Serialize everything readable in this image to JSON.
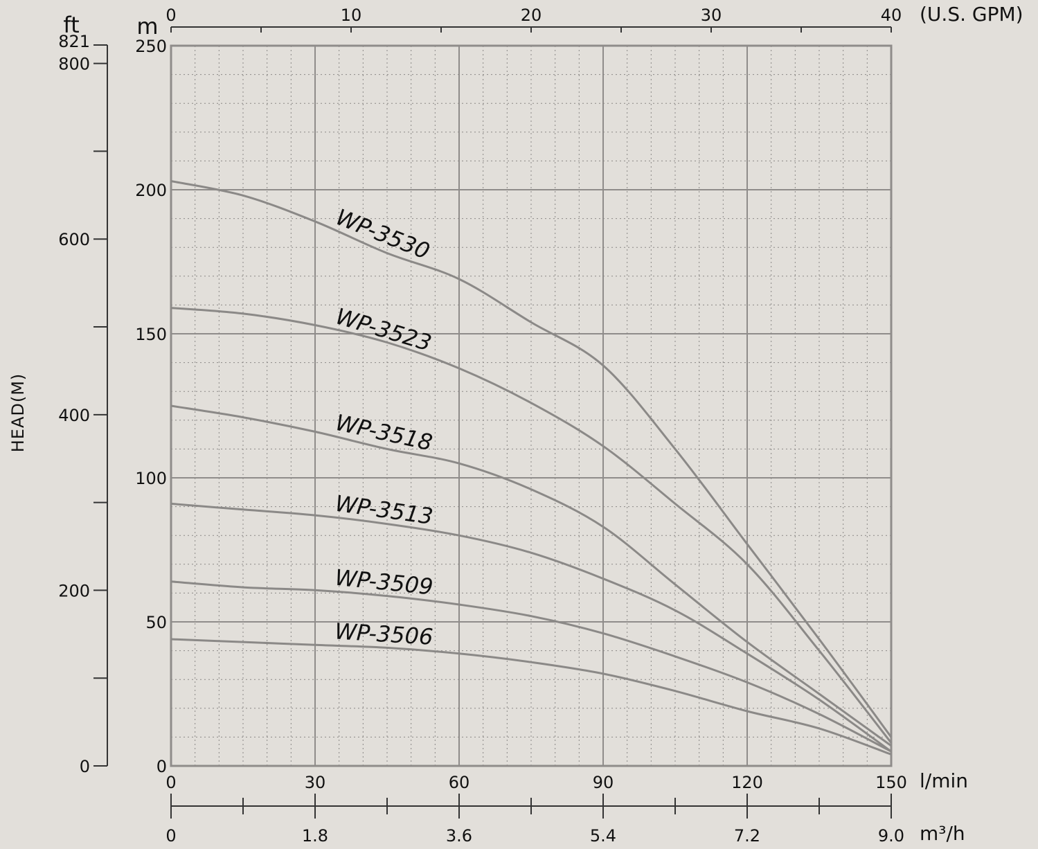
{
  "chart_data": {
    "type": "line",
    "title": "",
    "xlabel": "l/min",
    "ylabel": "HEAD(M)",
    "xlim": [
      0,
      150
    ],
    "ylim": [
      0,
      250
    ],
    "grid": true,
    "x_ticks": [
      0,
      30,
      60,
      90,
      120,
      150
    ],
    "y_ticks": [
      0,
      50,
      100,
      150,
      200,
      250
    ],
    "y_unit": "m",
    "top_axis": {
      "unit": "(U.S. GPM)",
      "ticks": [
        "0",
        "10",
        "20",
        "30",
        "40"
      ]
    },
    "bottom_axis_2": {
      "unit": "m³/h",
      "ticks": [
        "0",
        "1.8",
        "3.6",
        "5.4",
        "7.2",
        "9.0"
      ]
    },
    "left_axis_ft": {
      "unit": "ft",
      "ticks": [
        "0",
        "200",
        "400",
        "600",
        "800",
        "821"
      ]
    },
    "x_unit": "l/min",
    "series": [
      {
        "name": "WP-3530",
        "x": [
          0,
          15,
          30,
          45,
          60,
          75,
          90,
          105,
          120,
          135,
          150
        ],
        "y": [
          203,
          198,
          189,
          178,
          169,
          154,
          139,
          110,
          77,
          44,
          10
        ]
      },
      {
        "name": "WP-3523",
        "x": [
          0,
          15,
          30,
          45,
          60,
          75,
          90,
          105,
          120,
          135,
          150
        ],
        "y": [
          159,
          157,
          153,
          147,
          138,
          126,
          111,
          91,
          70,
          40,
          8
        ]
      },
      {
        "name": "WP-3518",
        "x": [
          0,
          15,
          30,
          45,
          60,
          75,
          90,
          105,
          120,
          135,
          150
        ],
        "y": [
          125,
          121,
          116,
          110,
          105,
          96,
          83,
          63,
          43,
          25,
          7
        ]
      },
      {
        "name": "WP-3513",
        "x": [
          0,
          15,
          30,
          45,
          60,
          75,
          90,
          105,
          120,
          135,
          150
        ],
        "y": [
          91,
          89,
          87,
          84,
          80,
          74,
          65,
          54,
          39,
          23,
          5
        ]
      },
      {
        "name": "WP-3509",
        "x": [
          0,
          15,
          30,
          45,
          60,
          75,
          90,
          105,
          120,
          135,
          150
        ],
        "y": [
          64,
          62,
          61,
          59,
          56,
          52,
          46,
          38,
          29,
          18,
          5
        ]
      },
      {
        "name": "WP-3506",
        "x": [
          0,
          15,
          30,
          45,
          60,
          75,
          90,
          105,
          120,
          135,
          150
        ],
        "y": [
          44,
          43,
          42,
          41,
          39,
          36,
          32,
          26,
          19,
          13,
          4
        ]
      }
    ]
  }
}
